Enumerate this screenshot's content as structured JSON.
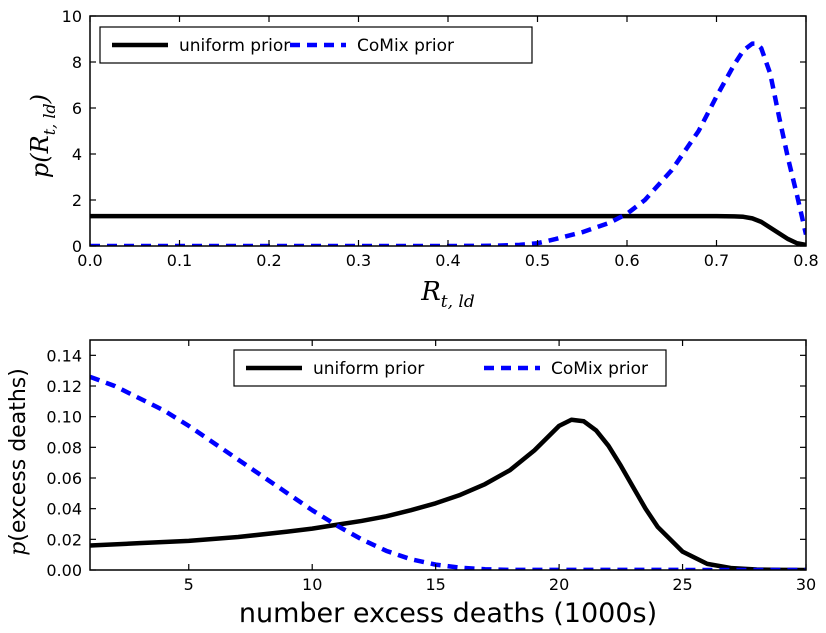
{
  "colors": {
    "uniform": "#000000",
    "comix": "#0000ff"
  },
  "chart_data": [
    {
      "type": "line",
      "xlabel": "R_{t,ld}",
      "ylabel": "p(R_{t,ld})",
      "xlim": [
        0.0,
        0.8
      ],
      "ylim": [
        0,
        10
      ],
      "xticks": [
        "0.0",
        "0.1",
        "0.2",
        "0.3",
        "0.4",
        "0.5",
        "0.6",
        "0.7",
        "0.8"
      ],
      "yticks": [
        "0",
        "2",
        "4",
        "6",
        "8",
        "10"
      ],
      "legend": {
        "placement": "top-left",
        "entries": [
          "uniform prior",
          "CoMix prior"
        ]
      },
      "series": [
        {
          "name": "uniform prior",
          "style": "solid",
          "x": [
            0.0,
            0.1,
            0.2,
            0.3,
            0.4,
            0.5,
            0.6,
            0.65,
            0.7,
            0.72,
            0.73,
            0.74,
            0.75,
            0.76,
            0.77,
            0.78,
            0.79,
            0.8
          ],
          "y": [
            1.3,
            1.3,
            1.3,
            1.3,
            1.3,
            1.3,
            1.3,
            1.3,
            1.3,
            1.29,
            1.27,
            1.2,
            1.05,
            0.8,
            0.55,
            0.3,
            0.12,
            0.05
          ]
        },
        {
          "name": "CoMix prior",
          "style": "dashed",
          "x": [
            0.0,
            0.4,
            0.45,
            0.48,
            0.5,
            0.52,
            0.55,
            0.58,
            0.6,
            0.62,
            0.65,
            0.68,
            0.7,
            0.72,
            0.73,
            0.74,
            0.745,
            0.75,
            0.76,
            0.77,
            0.78,
            0.79,
            0.8
          ],
          "y": [
            0,
            0,
            0.01,
            0.05,
            0.12,
            0.3,
            0.6,
            1.0,
            1.4,
            2.0,
            3.3,
            5.0,
            6.5,
            7.9,
            8.5,
            8.8,
            8.8,
            8.6,
            7.5,
            5.6,
            3.8,
            2.2,
            0.5
          ]
        }
      ]
    },
    {
      "type": "line",
      "xlabel": "number excess deaths (1000s)",
      "ylabel": "p(excess deaths)",
      "xlim": [
        1,
        30
      ],
      "ylim": [
        0,
        0.15
      ],
      "xticks": [
        "5",
        "10",
        "15",
        "20",
        "25",
        "30"
      ],
      "yticks": [
        "0.00",
        "0.02",
        "0.04",
        "0.06",
        "0.08",
        "0.10",
        "0.12",
        "0.14"
      ],
      "legend": {
        "placement": "upper-center",
        "entries": [
          "uniform prior",
          "CoMix prior"
        ]
      },
      "series": [
        {
          "name": "uniform prior",
          "style": "solid",
          "x": [
            1,
            3,
            5,
            7,
            9,
            10,
            11,
            12,
            13,
            14,
            15,
            16,
            17,
            18,
            19,
            19.5,
            20,
            20.5,
            21,
            21.5,
            22,
            22.5,
            23,
            23.5,
            24,
            25,
            26,
            27,
            28,
            29,
            30
          ],
          "y": [
            0.016,
            0.0175,
            0.019,
            0.0215,
            0.025,
            0.027,
            0.0295,
            0.032,
            0.035,
            0.039,
            0.0435,
            0.049,
            0.056,
            0.065,
            0.078,
            0.086,
            0.094,
            0.098,
            0.097,
            0.091,
            0.081,
            0.068,
            0.054,
            0.04,
            0.028,
            0.012,
            0.004,
            0.0012,
            0.0003,
            0.0001,
            0.0
          ]
        },
        {
          "name": "CoMix prior",
          "style": "dashed",
          "x": [
            1,
            2,
            3,
            4,
            5,
            6,
            7,
            8,
            9,
            10,
            11,
            12,
            13,
            14,
            15,
            16,
            17,
            18,
            30
          ],
          "y": [
            0.126,
            0.12,
            0.112,
            0.104,
            0.094,
            0.083,
            0.072,
            0.061,
            0.05,
            0.039,
            0.029,
            0.02,
            0.0125,
            0.007,
            0.0035,
            0.0015,
            0.0005,
            0.0001,
            0.0
          ]
        }
      ]
    }
  ]
}
